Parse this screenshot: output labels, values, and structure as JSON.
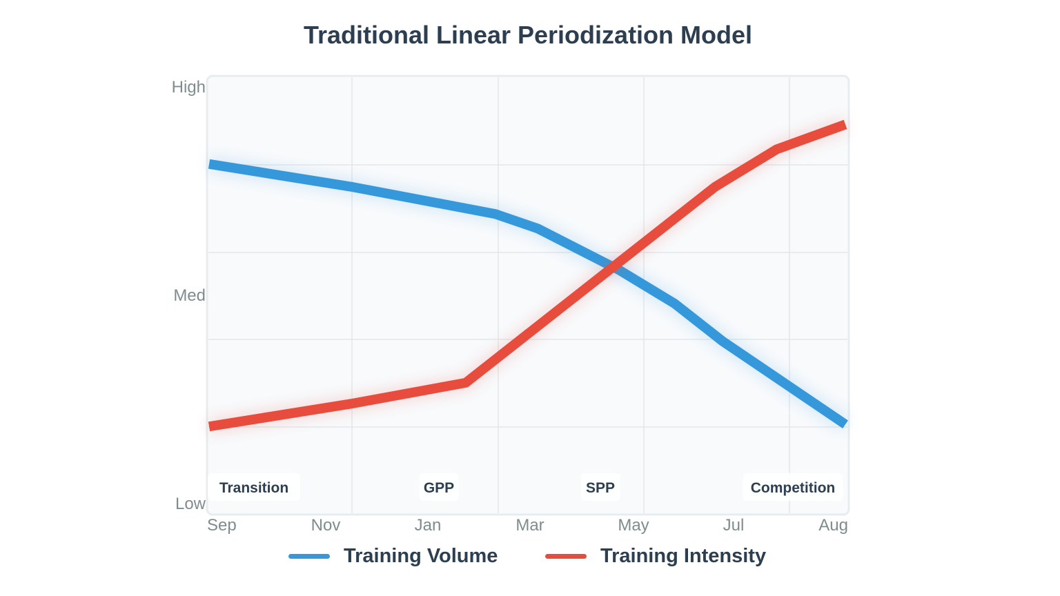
{
  "chart_data": {
    "type": "line",
    "title": "Traditional Linear Periodization Model",
    "x_tick_labels": [
      "Sep",
      "Nov",
      "Jan",
      "Mar",
      "May",
      "Jul",
      "Aug"
    ],
    "y_tick_labels": [
      "Low",
      "Med",
      "High"
    ],
    "xlim": [
      0,
      6
    ],
    "ylim": [
      0,
      100
    ],
    "grid": true,
    "legend_position": "bottom",
    "phase_labels": [
      "Transition",
      "GPP",
      "SPP",
      "Competition"
    ],
    "series": [
      {
        "name": "Training Volume",
        "color": "#3498db",
        "x": [
          0,
          1.35,
          2.7,
          3.1,
          3.87,
          4.39,
          4.84,
          6
        ],
        "y": [
          81.5,
          76,
          69.5,
          66,
          56,
          48,
          39,
          19
        ]
      },
      {
        "name": "Training Intensity",
        "color": "#e74c3c",
        "x": [
          0,
          1.35,
          2.42,
          2.97,
          3.87,
          4.77,
          5.35,
          6
        ],
        "y": [
          18.5,
          24,
          29,
          40,
          58,
          76,
          85,
          91
        ]
      }
    ]
  }
}
